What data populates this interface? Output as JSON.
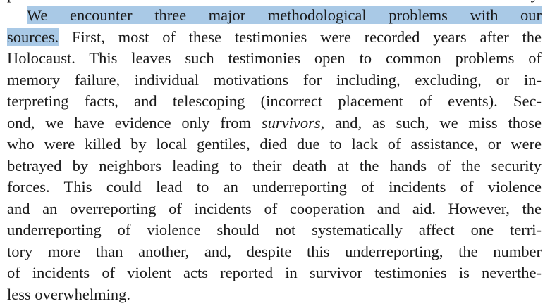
{
  "paragraph": {
    "lines": [
      "parison of non-Jewish behavior toward the Jews from each territory.",
      "We encounter three major methodological problems with our",
      [
        "sources.",
        " First, most of these testimonies were recorded years after the"
      ],
      "Holocaust. This leaves such testimonies open to common problems of",
      "memory failure, individual motivations for including, excluding, or in-",
      "terpreting facts, and telescoping (incorrect placement of events). Sec-",
      [
        "ond, we have evidence only from ",
        "survivors",
        ", and, as such, we miss those"
      ],
      "who were killed by local gentiles, died due to lack of assistance, or were",
      "betrayed by neighbors leading to their death at the hands of the security",
      "forces. This could lead to an underreporting of incidents of violence",
      "and an overreporting of incidents of cooperation and aid. However, the",
      "underreporting of violence should not systematically affect one terri-",
      "tory more than another, and, despite this underreporting, the number",
      "of incidents of violent acts reported in survivor testimonies is neverthe-",
      "less overwhelming."
    ]
  }
}
